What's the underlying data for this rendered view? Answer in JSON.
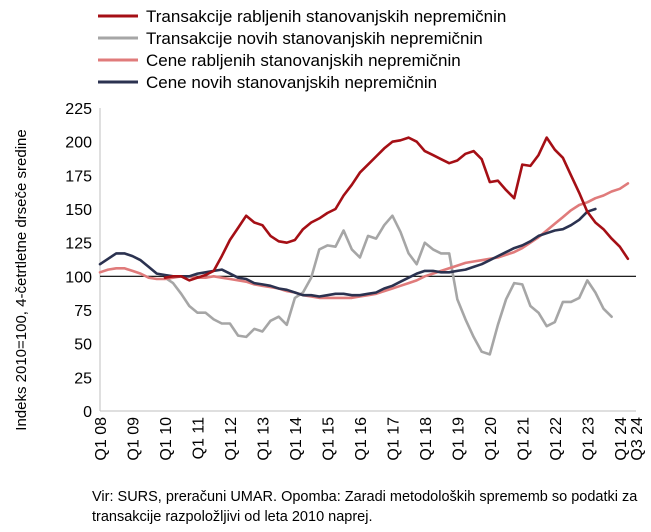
{
  "chart_data": {
    "type": "line",
    "ylabel": "Indeks 2010=100, 4-četrtletne drseče sredine",
    "ylim": [
      0,
      225
    ],
    "yticks": [
      0,
      25,
      50,
      75,
      100,
      125,
      150,
      175,
      200,
      225
    ],
    "x_tick_labels": [
      "Q1 08",
      "Q1 09",
      "Q1 10",
      "Q1 11",
      "Q1 12",
      "Q1 13",
      "Q1 14",
      "Q1 15",
      "Q1 16",
      "Q1 17",
      "Q1 18",
      "Q1 19",
      "Q1 20",
      "Q1 21",
      "Q1 22",
      "Q1 23",
      "Q1 24",
      "Q3 24"
    ],
    "reference_line": 100,
    "legend_position": "top",
    "note": "Vir: SURS, preračuni UMAR. Opomba: Zaradi metodoloških sprememb so podatki za transakcije razpoložljivi od leta 2010 naprej.",
    "series": [
      {
        "name": "Transakcije rabljenih stanovanjskih nepremičnin",
        "color": "#a50f15",
        "start_index": 8,
        "values": [
          99,
          100,
          100,
          97,
          99,
          101,
          104,
          115,
          127,
          136,
          145,
          140,
          138,
          130,
          126,
          125,
          127,
          135,
          140,
          143,
          147,
          150,
          160,
          168,
          177,
          183,
          189,
          195,
          200,
          201,
          203,
          200,
          193,
          190,
          187,
          184,
          186,
          191,
          193,
          187,
          170,
          171,
          164,
          158,
          183,
          182,
          190,
          203,
          194,
          188,
          175,
          162,
          148,
          140,
          135,
          128,
          122,
          113
        ]
      },
      {
        "name": "Transakcije novih stanovanjskih nepremičnin",
        "color": "#a6a6a6",
        "start_index": 8,
        "values": [
          99,
          95,
          87,
          78,
          73,
          73,
          68,
          65,
          65,
          56,
          55,
          61,
          59,
          67,
          70,
          64,
          84,
          88,
          99,
          120,
          123,
          122,
          134,
          120,
          114,
          130,
          128,
          138,
          145,
          133,
          117,
          109,
          125,
          120,
          117,
          117,
          83,
          68,
          55,
          44,
          42,
          64,
          83,
          95,
          94,
          78,
          73,
          63,
          66,
          81,
          81,
          84,
          97,
          88,
          76,
          70
        ]
      },
      {
        "name": "Cene rabljenih stanovanjskih nepremičnin",
        "color": "#e07b7b",
        "values": [
          103,
          105,
          106,
          106,
          104,
          102,
          99,
          98,
          98,
          99,
          100,
          100,
          99,
          99,
          100,
          99,
          98,
          97,
          96,
          94,
          93,
          92,
          91,
          89,
          88,
          86,
          85,
          84,
          84,
          84,
          84,
          84,
          85,
          86,
          87,
          89,
          91,
          93,
          95,
          97,
          100,
          102,
          104,
          106,
          108,
          110,
          111,
          112,
          113,
          114,
          116,
          118,
          121,
          125,
          129,
          134,
          139,
          144,
          149,
          153,
          155,
          158,
          160,
          163,
          165,
          169
        ]
      },
      {
        "name": "Cene novih stanovanjskih nepremičnin",
        "color": "#2b3250",
        "values": [
          109,
          113,
          117,
          117,
          115,
          112,
          107,
          102,
          101,
          100,
          100,
          100,
          102,
          103,
          104,
          105,
          102,
          99,
          98,
          95,
          94,
          93,
          91,
          90,
          88,
          86,
          86,
          85,
          86,
          87,
          87,
          86,
          86,
          87,
          88,
          91,
          93,
          96,
          99,
          102,
          104,
          104,
          103,
          103,
          104,
          105,
          107,
          109,
          112,
          115,
          118,
          121,
          123,
          126,
          130,
          132,
          134,
          135,
          138,
          142,
          148,
          150
        ]
      }
    ]
  }
}
